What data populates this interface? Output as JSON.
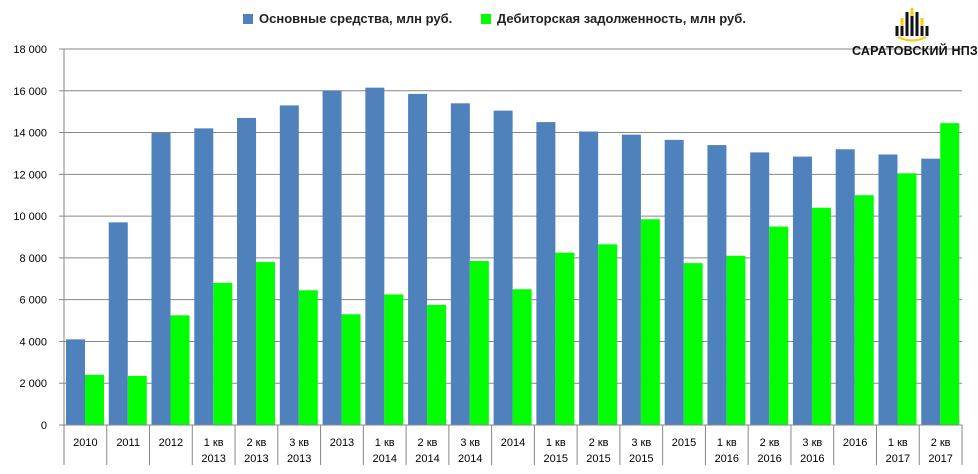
{
  "colors": {
    "series1": "#4f81bd",
    "series2": "#00ff00",
    "grid": "#868686",
    "axis": "#868686",
    "logo_yellow": "#ffcc00",
    "logo_black": "#111111"
  },
  "logo": {
    "text": "САРАТОВСКИЙ НПЗ",
    "icon": "rosneft-logo-icon"
  },
  "chart_data": {
    "type": "bar",
    "title": "",
    "xlabel": "",
    "ylabel": "",
    "ylim": [
      0,
      18000
    ],
    "yticks": [
      0,
      2000,
      4000,
      6000,
      8000,
      10000,
      12000,
      14000,
      16000,
      18000
    ],
    "ytick_labels": [
      "0",
      "2 000",
      "4 000",
      "6 000",
      "8 000",
      "10 000",
      "12 000",
      "14 000",
      "16 000",
      "18 000"
    ],
    "grid": true,
    "legend_position": "top",
    "categories": [
      [
        "2010"
      ],
      [
        "2011"
      ],
      [
        "2012"
      ],
      [
        "1 кв",
        "2013"
      ],
      [
        "2 кв",
        "2013"
      ],
      [
        "3 кв",
        "2013"
      ],
      [
        "2013"
      ],
      [
        "1 кв",
        "2014"
      ],
      [
        "2 кв",
        "2014"
      ],
      [
        "3 кв",
        "2014"
      ],
      [
        "2014"
      ],
      [
        "1 кв",
        "2015"
      ],
      [
        "2 кв",
        "2015"
      ],
      [
        "3 кв",
        "2015"
      ],
      [
        "2015"
      ],
      [
        "1 кв",
        "2016"
      ],
      [
        "2 кв",
        "2016"
      ],
      [
        "3 кв",
        "2016"
      ],
      [
        "2016"
      ],
      [
        "1 кв",
        "2017"
      ],
      [
        "2 кв",
        "2017"
      ]
    ],
    "series": [
      {
        "name": "Основные средства, млн руб.",
        "values": [
          4100,
          9700,
          14000,
          14200,
          14700,
          15300,
          16000,
          16150,
          15850,
          15400,
          15050,
          14500,
          14050,
          13900,
          13650,
          13400,
          13050,
          12850,
          13200,
          12950,
          12750
        ]
      },
      {
        "name": "Дебиторская задолженность, млн руб.",
        "values": [
          2400,
          2350,
          5250,
          6800,
          7800,
          6450,
          5300,
          6250,
          5750,
          7850,
          6500,
          8250,
          8650,
          9850,
          7750,
          8100,
          9500,
          10400,
          11000,
          12050,
          14450
        ]
      }
    ]
  }
}
